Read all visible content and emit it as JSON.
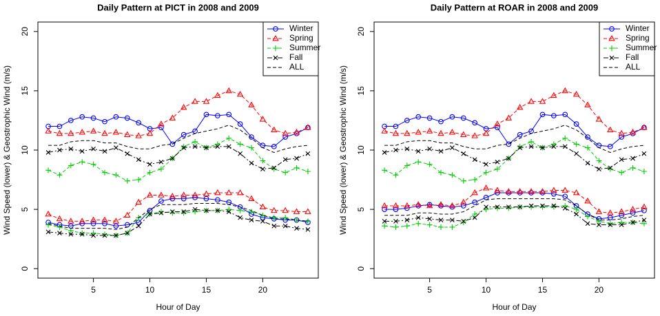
{
  "chart_data": [
    {
      "type": "line",
      "title": "Daily Pattern at PICT in 2008 and 2009",
      "xlabel": "Hour of Day",
      "ylabel": "Wind Speed (lower) & Geostrophic Wind (m/s)",
      "x": [
        1,
        2,
        3,
        4,
        5,
        6,
        7,
        8,
        9,
        10,
        11,
        12,
        13,
        14,
        15,
        16,
        17,
        18,
        19,
        20,
        21,
        22,
        23,
        24
      ],
      "xlim": [
        0.08,
        24.92
      ],
      "ylim": [
        -0.8,
        20.8
      ],
      "xticks": [
        5,
        10,
        15,
        20
      ],
      "yticks": [
        0,
        5,
        10,
        15,
        20
      ],
      "legend": "topright",
      "series": [
        {
          "name": "Winter",
          "color": "#0000ff",
          "marker": "circle",
          "dash": "solid",
          "values": [
            12.0,
            12.0,
            12.5,
            12.8,
            12.7,
            12.4,
            12.8,
            12.7,
            12.3,
            11.8,
            11.9,
            10.5,
            11.3,
            11.6,
            13.0,
            12.9,
            13.0,
            12.2,
            11.1,
            10.4,
            10.3,
            11.1,
            11.4,
            11.9
          ],
          "lower_values": [
            3.9,
            3.7,
            3.6,
            3.8,
            3.8,
            3.8,
            3.6,
            3.7,
            3.9,
            4.9,
            5.7,
            5.9,
            5.9,
            6.0,
            5.9,
            5.8,
            5.6,
            5.2,
            4.6,
            4.3,
            4.2,
            4.1,
            4.1,
            3.9
          ]
        },
        {
          "name": "Spring",
          "color": "#ff0000",
          "marker": "triangle",
          "dash": "dashed",
          "values": [
            11.6,
            11.4,
            11.4,
            11.5,
            11.6,
            11.4,
            11.5,
            11.3,
            11.2,
            11.4,
            12.2,
            12.7,
            13.6,
            14.1,
            14.1,
            14.6,
            15.0,
            14.7,
            13.8,
            12.6,
            11.7,
            11.4,
            11.5,
            11.9
          ],
          "lower_values": [
            4.6,
            4.2,
            4.0,
            4.0,
            4.1,
            4.1,
            4.0,
            4.5,
            5.6,
            6.2,
            6.2,
            6.1,
            6.2,
            6.2,
            6.3,
            6.4,
            6.4,
            6.4,
            5.9,
            5.2,
            4.9,
            4.9,
            4.8,
            4.8
          ]
        },
        {
          "name": "Summer",
          "color": "#00cc00",
          "marker": "plus",
          "dash": "dashed",
          "values": [
            8.3,
            7.9,
            8.7,
            9.0,
            8.8,
            8.1,
            7.9,
            7.4,
            7.5,
            8.1,
            8.4,
            9.3,
            10.3,
            10.7,
            10.2,
            10.5,
            11.0,
            10.5,
            10.2,
            9.1,
            8.4,
            8.1,
            8.5,
            8.2
          ],
          "lower_values": [
            3.7,
            3.5,
            3.2,
            3.0,
            3.0,
            2.9,
            2.8,
            3.0,
            4.3,
            4.6,
            4.8,
            4.7,
            4.7,
            4.8,
            4.9,
            4.9,
            5.0,
            4.9,
            4.8,
            4.5,
            4.3,
            4.3,
            4.1,
            4.0
          ]
        },
        {
          "name": "Fall",
          "color": "#000000",
          "marker": "cross",
          "dash": "dashdot",
          "values": [
            9.8,
            10.0,
            10.1,
            9.9,
            10.1,
            9.9,
            10.2,
            9.7,
            9.2,
            8.8,
            9.0,
            9.3,
            10.2,
            10.3,
            10.2,
            10.3,
            10.3,
            9.7,
            8.9,
            8.4,
            8.5,
            9.2,
            9.3,
            9.7
          ],
          "lower_values": [
            3.1,
            3.0,
            2.9,
            2.9,
            2.8,
            2.8,
            2.8,
            3.0,
            3.6,
            4.6,
            4.7,
            4.8,
            4.8,
            5.0,
            4.9,
            4.9,
            4.8,
            4.3,
            4.1,
            4.0,
            3.6,
            3.6,
            3.4,
            3.3
          ]
        },
        {
          "name": "ALL",
          "color": "#000000",
          "marker": "none",
          "dash": "dashed",
          "values": [
            10.4,
            10.4,
            10.7,
            10.8,
            10.8,
            10.6,
            10.6,
            10.3,
            10.1,
            10.1,
            10.4,
            10.5,
            11.0,
            11.4,
            11.6,
            11.8,
            12.1,
            11.7,
            11.0,
            10.2,
            9.8,
            10.1,
            10.3,
            10.4
          ],
          "lower_values": [
            3.8,
            3.6,
            3.4,
            3.4,
            3.4,
            3.4,
            3.3,
            3.5,
            4.3,
            5.0,
            5.4,
            5.4,
            5.4,
            5.5,
            5.5,
            5.5,
            5.4,
            5.2,
            4.9,
            4.5,
            4.2,
            4.2,
            4.1,
            4.0
          ]
        }
      ]
    },
    {
      "type": "line",
      "title": "Daily Pattern at ROAR in 2008 and 2009",
      "xlabel": "Hour of Day",
      "ylabel": "Wind Speed (lower) & Geostrophic Wind (m/s)",
      "x": [
        1,
        2,
        3,
        4,
        5,
        6,
        7,
        8,
        9,
        10,
        11,
        12,
        13,
        14,
        15,
        16,
        17,
        18,
        19,
        20,
        21,
        22,
        23,
        24
      ],
      "xlim": [
        0.08,
        24.92
      ],
      "ylim": [
        -0.8,
        20.8
      ],
      "xticks": [
        5,
        10,
        15,
        20
      ],
      "yticks": [
        0,
        5,
        10,
        15,
        20
      ],
      "legend": "topright",
      "series": [
        {
          "name": "Winter",
          "color": "#0000ff",
          "marker": "circle",
          "dash": "solid",
          "values": [
            12.0,
            12.0,
            12.5,
            12.8,
            12.7,
            12.4,
            12.8,
            12.7,
            12.3,
            11.8,
            11.9,
            10.5,
            11.3,
            11.6,
            13.0,
            12.9,
            13.0,
            12.2,
            11.1,
            10.4,
            10.3,
            11.1,
            11.4,
            11.9
          ],
          "lower_values": [
            5.0,
            5.0,
            5.1,
            5.3,
            5.4,
            5.3,
            5.2,
            5.3,
            5.6,
            6.0,
            6.4,
            6.4,
            6.4,
            6.4,
            6.4,
            6.3,
            6.1,
            5.3,
            4.6,
            4.2,
            4.3,
            4.5,
            4.7,
            4.9
          ]
        },
        {
          "name": "Spring",
          "color": "#ff0000",
          "marker": "triangle",
          "dash": "dashed",
          "values": [
            11.6,
            11.4,
            11.4,
            11.5,
            11.6,
            11.4,
            11.5,
            11.3,
            11.2,
            11.4,
            12.2,
            12.7,
            13.6,
            14.1,
            14.1,
            14.6,
            15.0,
            14.7,
            13.8,
            12.6,
            11.7,
            11.4,
            11.5,
            11.9
          ],
          "lower_values": [
            5.3,
            5.3,
            5.3,
            5.4,
            5.3,
            5.4,
            5.3,
            5.6,
            6.4,
            6.8,
            6.6,
            6.5,
            6.5,
            6.5,
            6.5,
            6.6,
            6.6,
            6.4,
            5.7,
            4.8,
            4.7,
            4.8,
            5.0,
            5.2
          ]
        },
        {
          "name": "Summer",
          "color": "#00cc00",
          "marker": "plus",
          "dash": "dashed",
          "values": [
            8.3,
            7.9,
            8.7,
            9.0,
            8.8,
            8.1,
            7.9,
            7.4,
            7.5,
            8.1,
            8.4,
            9.3,
            10.3,
            10.7,
            10.2,
            10.5,
            11.0,
            10.5,
            10.2,
            9.1,
            8.4,
            8.1,
            8.5,
            8.2
          ],
          "lower_values": [
            3.6,
            3.5,
            3.6,
            3.8,
            3.7,
            3.5,
            3.5,
            3.9,
            4.6,
            5.0,
            5.1,
            5.1,
            5.2,
            5.2,
            5.2,
            5.2,
            5.3,
            5.0,
            4.4,
            4.0,
            3.8,
            3.9,
            3.9,
            3.8
          ]
        },
        {
          "name": "Fall",
          "color": "#000000",
          "marker": "cross",
          "dash": "dashdot",
          "values": [
            9.8,
            10.0,
            10.1,
            9.9,
            10.1,
            9.9,
            10.2,
            9.7,
            9.2,
            8.8,
            9.0,
            9.3,
            10.2,
            10.3,
            10.2,
            10.3,
            10.3,
            9.7,
            8.9,
            8.4,
            8.5,
            9.2,
            9.3,
            9.7
          ],
          "lower_values": [
            4.0,
            4.0,
            4.1,
            4.3,
            4.2,
            4.1,
            4.1,
            4.0,
            4.3,
            5.2,
            5.2,
            5.2,
            5.2,
            5.3,
            5.3,
            5.3,
            5.1,
            4.6,
            3.8,
            3.7,
            3.7,
            3.7,
            3.9,
            4.1
          ]
        },
        {
          "name": "ALL",
          "color": "#000000",
          "marker": "none",
          "dash": "dashed",
          "values": [
            10.4,
            10.4,
            10.7,
            10.8,
            10.8,
            10.6,
            10.6,
            10.3,
            10.1,
            10.1,
            10.4,
            10.5,
            11.0,
            11.4,
            11.6,
            11.8,
            12.1,
            11.7,
            11.0,
            10.2,
            9.8,
            10.1,
            10.3,
            10.4
          ],
          "lower_values": [
            4.5,
            4.5,
            4.5,
            4.7,
            4.7,
            4.6,
            4.6,
            4.8,
            5.3,
            5.8,
            5.9,
            5.9,
            5.9,
            5.9,
            5.9,
            5.9,
            5.8,
            5.3,
            4.6,
            4.1,
            4.1,
            4.2,
            4.4,
            4.5
          ]
        }
      ]
    }
  ]
}
